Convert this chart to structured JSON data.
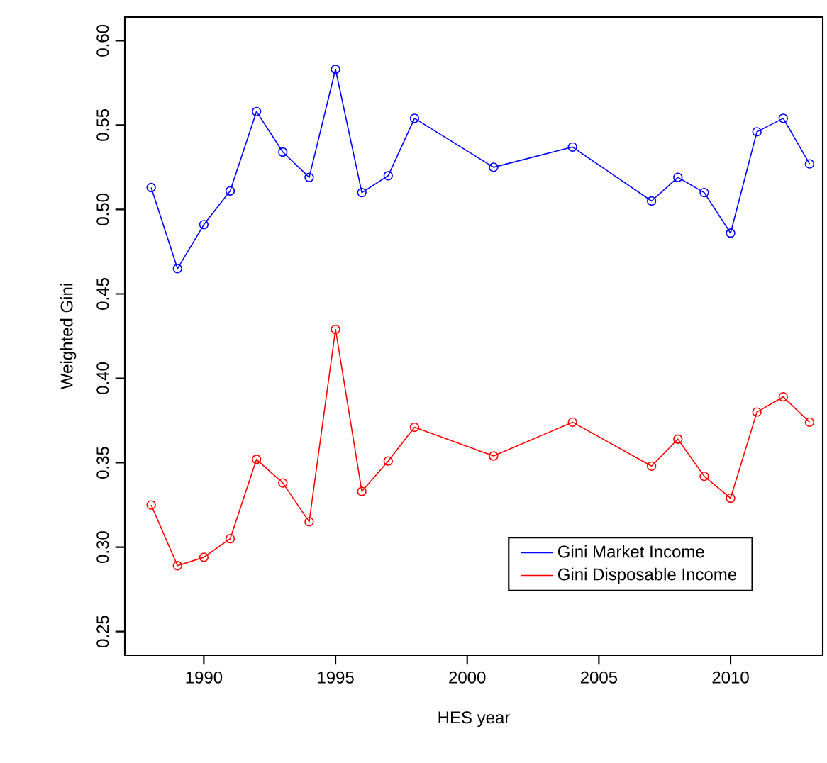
{
  "chart_data": {
    "type": "line",
    "xlabel": "HES year",
    "ylabel": "Weighted Gini",
    "x": [
      1988,
      1989,
      1990,
      1991,
      1992,
      1993,
      1994,
      1995,
      1996,
      1997,
      1998,
      2001,
      2004,
      2007,
      2008,
      2009,
      2010,
      2011,
      2012,
      2013
    ],
    "series": [
      {
        "name": "Gini Market Income",
        "color": "#0000ff",
        "values": [
          0.513,
          0.465,
          0.491,
          0.511,
          0.558,
          0.534,
          0.519,
          0.583,
          0.51,
          0.52,
          0.554,
          0.525,
          0.537,
          0.505,
          0.519,
          0.51,
          0.486,
          0.546,
          0.554,
          0.527
        ]
      },
      {
        "name": "Gini Disposable Income",
        "color": "#ff0000",
        "values": [
          0.325,
          0.289,
          0.294,
          0.305,
          0.352,
          0.338,
          0.315,
          0.429,
          0.333,
          0.351,
          0.371,
          0.354,
          0.374,
          0.348,
          0.364,
          0.342,
          0.329,
          0.38,
          0.389,
          0.374
        ]
      }
    ],
    "xlim": [
      1987,
      2013.5
    ],
    "ylim": [
      0.236,
      0.614
    ],
    "xticks": [
      1990,
      1995,
      2000,
      2005,
      2010
    ],
    "yticks": [
      {
        "value": 0.25,
        "label": "0.25"
      },
      {
        "value": 0.3,
        "label": "0.30"
      },
      {
        "value": 0.35,
        "label": "0.35"
      },
      {
        "value": 0.4,
        "label": "0.40"
      },
      {
        "value": 0.45,
        "label": "0.45"
      },
      {
        "value": 0.5,
        "label": "0.50"
      },
      {
        "value": 0.55,
        "label": "0.55"
      },
      {
        "value": 0.6,
        "label": "0.60"
      }
    ],
    "grid": false,
    "legend": "bottom right",
    "marker": "circle",
    "line_style": "solid"
  }
}
